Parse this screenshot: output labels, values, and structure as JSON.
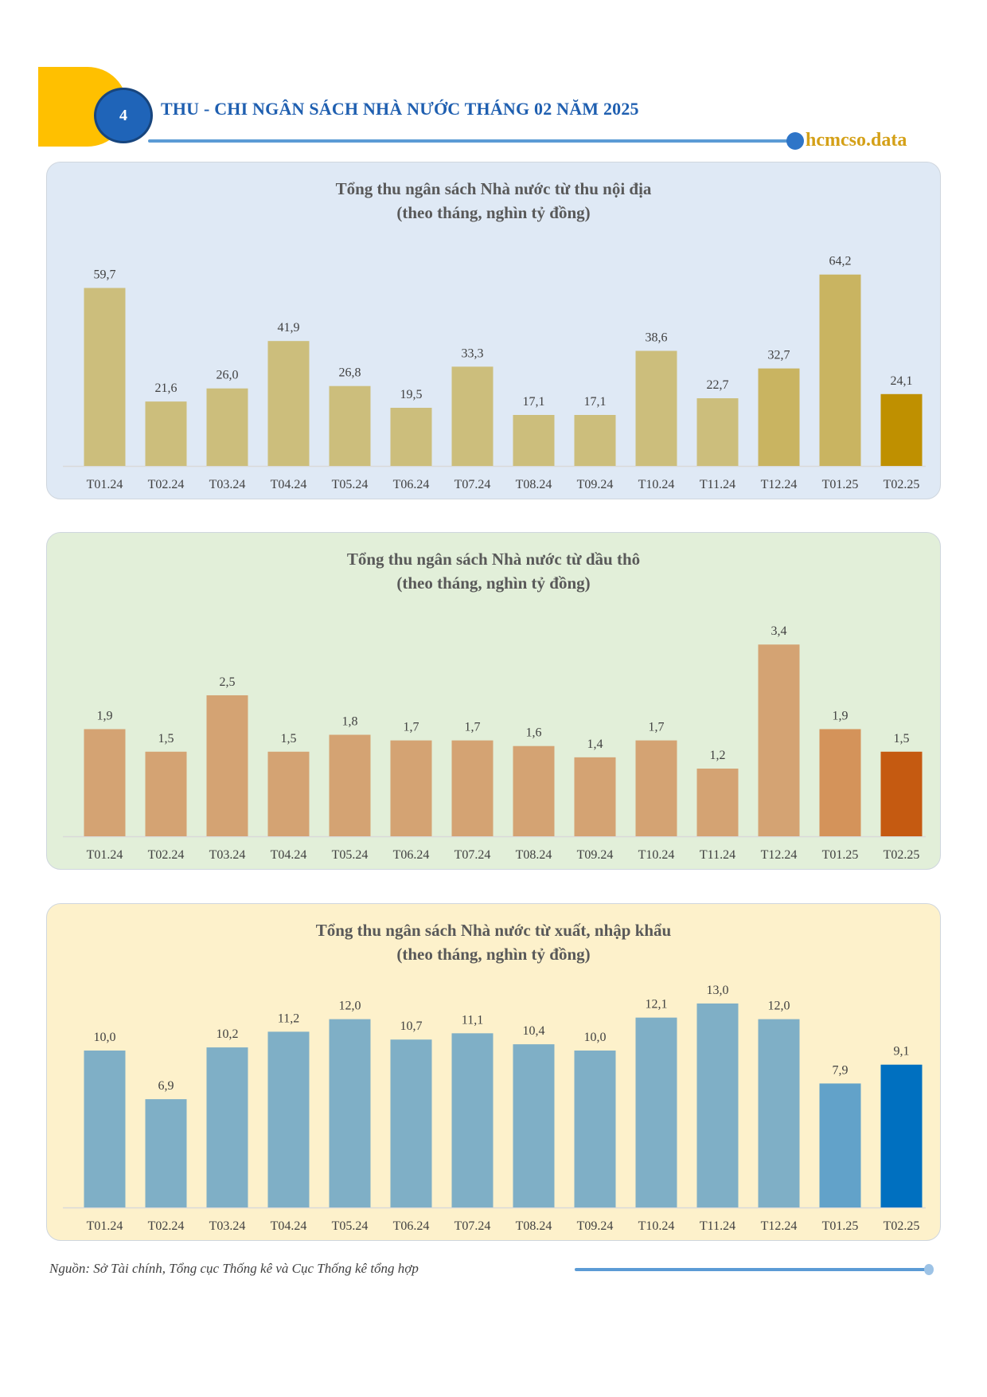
{
  "header": {
    "page_number": "4",
    "title": "THU - CHI NGÂN SÁCH NHÀ NƯỚC THÁNG 02 NĂM 2025",
    "brand": "hcmcso.data"
  },
  "footer": {
    "source": "Nguồn: Sở Tài chính, Tổng cục Thống kê và Cục Thống kê tổng hợp"
  },
  "chart_data": [
    {
      "type": "bar",
      "title": "Tổng thu ngân sách Nhà nước từ thu nội địa",
      "subtitle": "(theo tháng, nghìn tỷ đồng)",
      "categories": [
        "T01.24",
        "T02.24",
        "T03.24",
        "T04.24",
        "T05.24",
        "T06.24",
        "T07.24",
        "T08.24",
        "T09.24",
        "T10.24",
        "T11.24",
        "T12.24",
        "T01.25",
        "T02.25"
      ],
      "values": [
        59.7,
        21.6,
        26.0,
        41.9,
        26.8,
        19.5,
        33.3,
        17.1,
        17.1,
        38.6,
        22.7,
        32.7,
        64.2,
        24.1
      ],
      "labels": [
        "59,7",
        "21,6",
        "26,0",
        "41,9",
        "26,8",
        "19,5",
        "33,3",
        "17,1",
        "17,1",
        "38,6",
        "22,7",
        "32,7",
        "64,2",
        "24,1"
      ],
      "colors": [
        "#ccbe7c",
        "#ccbe7c",
        "#ccbe7c",
        "#ccbe7c",
        "#ccbe7c",
        "#ccbe7c",
        "#ccbe7c",
        "#ccbe7c",
        "#ccbe7c",
        "#ccbe7c",
        "#ccbe7c",
        "#c9b461",
        "#c9b461",
        "#bf9000"
      ],
      "ylim": [
        0,
        70
      ]
    },
    {
      "type": "bar",
      "title": "Tổng thu ngân sách Nhà nước từ dầu thô",
      "subtitle": "(theo tháng, nghìn tỷ đồng)",
      "categories": [
        "T01.24",
        "T02.24",
        "T03.24",
        "T04.24",
        "T05.24",
        "T06.24",
        "T07.24",
        "T08.24",
        "T09.24",
        "T10.24",
        "T11.24",
        "T12.24",
        "T01.25",
        "T02.25"
      ],
      "values": [
        1.9,
        1.5,
        2.5,
        1.5,
        1.8,
        1.7,
        1.7,
        1.6,
        1.4,
        1.7,
        1.2,
        3.4,
        1.9,
        1.5
      ],
      "labels": [
        "1,9",
        "1,5",
        "2,5",
        "1,5",
        "1,8",
        "1,7",
        "1,7",
        "1,6",
        "1,4",
        "1,7",
        "1,2",
        "3,4",
        "1,9",
        "1,5"
      ],
      "colors": [
        "#d4a373",
        "#d4a373",
        "#d4a373",
        "#d4a373",
        "#d4a373",
        "#d4a373",
        "#d4a373",
        "#d4a373",
        "#d4a373",
        "#d4a373",
        "#d4a373",
        "#d4a373",
        "#d4935a",
        "#c55a11"
      ],
      "ylim": [
        0,
        3.7
      ]
    },
    {
      "type": "bar",
      "title": "Tổng thu ngân sách Nhà nước từ xuất, nhập khẩu",
      "subtitle": "(theo tháng, nghìn tỷ đồng)",
      "categories": [
        "T01.24",
        "T02.24",
        "T03.24",
        "T04.24",
        "T05.24",
        "T06.24",
        "T07.24",
        "T08.24",
        "T09.24",
        "T10.24",
        "T11.24",
        "T12.24",
        "T01.25",
        "T02.25"
      ],
      "values": [
        10.0,
        6.9,
        10.2,
        11.2,
        12.0,
        10.7,
        11.1,
        10.4,
        10.0,
        12.1,
        13.0,
        12.0,
        7.9,
        9.1
      ],
      "labels": [
        "10,0",
        "6,9",
        "10,2",
        "11,2",
        "12,0",
        "10,7",
        "11,1",
        "10,4",
        "10,0",
        "12,1",
        "13,0",
        "12,0",
        "7,9",
        "9,1"
      ],
      "colors": [
        "#7fafc6",
        "#7fafc6",
        "#7fafc6",
        "#7fafc6",
        "#7fafc6",
        "#7fafc6",
        "#7fafc6",
        "#7fafc6",
        "#7fafc6",
        "#7fafc6",
        "#7fafc6",
        "#7fafc6",
        "#62a2c9",
        "#0070c0"
      ],
      "ylim": [
        0,
        13.3
      ]
    }
  ]
}
